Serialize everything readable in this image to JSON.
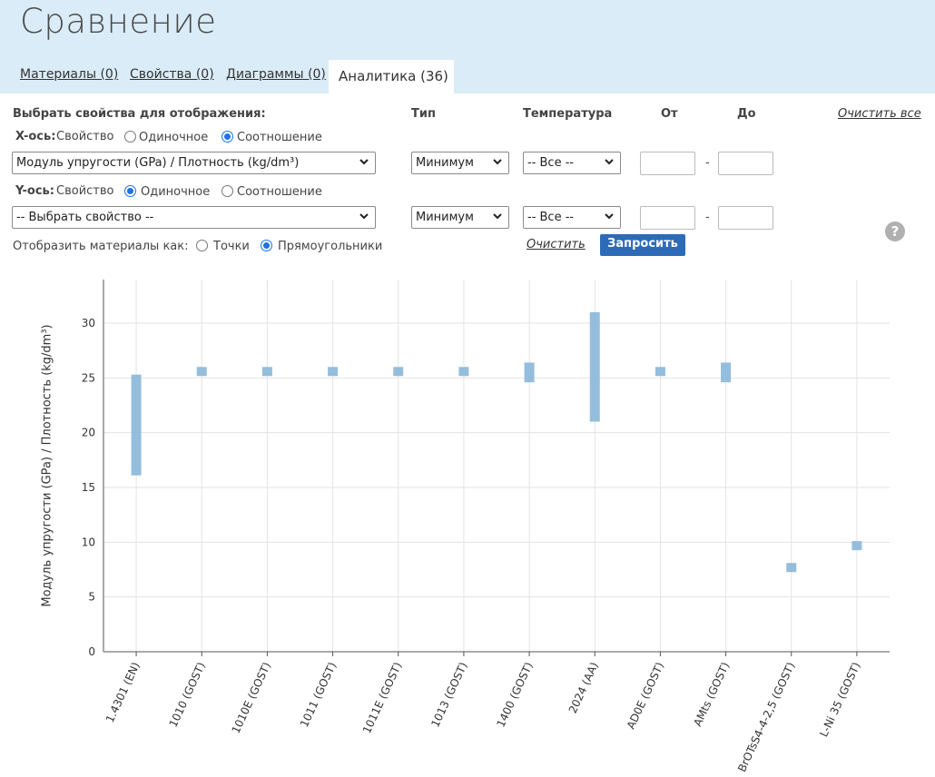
{
  "header": {
    "title": "Сравнение",
    "tabs": [
      {
        "label": "Материалы (0)"
      },
      {
        "label": "Свойства (0)"
      },
      {
        "label": "Диаграммы (0)"
      },
      {
        "label": "Аналитика (36)"
      }
    ]
  },
  "controls": {
    "select_props_label": "Выбрать свойства для отображения:",
    "col_type": "Тип",
    "col_temp": "Температура",
    "col_from": "От",
    "col_to": "До",
    "clear_all": "Очистить все",
    "x_axis_label": "X-ось:",
    "y_axis_label": "Y-ось:",
    "property_word": "Свойство",
    "single": "Одиночное",
    "ratio": "Соотношение",
    "x_property": "Модуль упругости (GPa) / Плотность (kg/dm³)",
    "y_property": "-- Выбрать свойство --",
    "type_value": "Минимум",
    "temp_value": "-- Все --",
    "dash": "-",
    "display_as": "Отобразить материалы как:",
    "points": "Точки",
    "rects": "Прямоугольники",
    "clear": "Очистить",
    "query": "Запросить",
    "help": "?"
  },
  "colors": {
    "header_bg": "#daecf8",
    "bar": "#8ab6d8",
    "button": "#2d6bb8",
    "radio": "#1a73e8"
  },
  "chart_data": {
    "type": "bar",
    "ylabel": "Модуль упругости (GPa) / Плотность (kg/dm³)",
    "ylim": [
      0,
      34
    ],
    "yticks": [
      0,
      5,
      10,
      15,
      20,
      25,
      30
    ],
    "grid": true,
    "categories": [
      "1.4301 (EN)",
      "1010 (GOST)",
      "1010E (GOST)",
      "1011 (GOST)",
      "1011E (GOST)",
      "1013 (GOST)",
      "1400 (GOST)",
      "2024 (AA)",
      "AD0E (GOST)",
      "AMts (GOST)",
      "BrOTsS4-4-2,5 (GOST)",
      "L-Ni 35 (GOST)"
    ],
    "ranges": [
      [
        16.1,
        25.3
      ],
      [
        25.4,
        26.0
      ],
      [
        25.4,
        26.0
      ],
      [
        25.4,
        26.0
      ],
      [
        25.4,
        26.0
      ],
      [
        25.4,
        26.0
      ],
      [
        24.6,
        26.4
      ],
      [
        21.0,
        31.0
      ],
      [
        25.4,
        26.0
      ],
      [
        24.6,
        26.4
      ],
      [
        7.3,
        8.1
      ],
      [
        9.3,
        10.1
      ]
    ]
  }
}
